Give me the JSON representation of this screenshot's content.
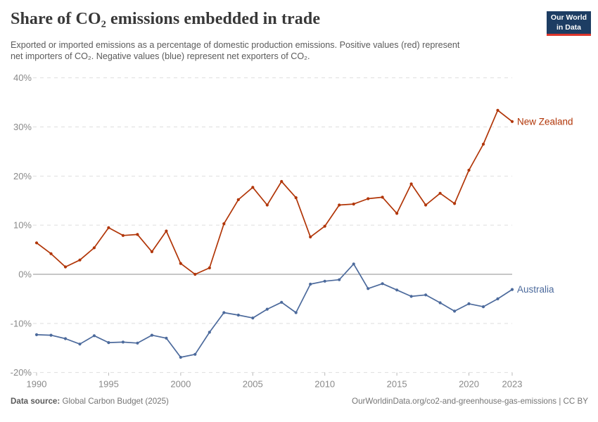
{
  "header": {
    "title": "Share of CO₂ emissions embedded in trade",
    "subtitle": "Exported or imported emissions as a percentage of domestic production emissions. Positive values (red) represent net importers of CO₂. Negative values (blue) represent net exporters of CO₂.",
    "logo": {
      "line1": "Our World",
      "line2": "in Data",
      "bg_color": "#1d3d63",
      "accent_color": "#dc352b"
    }
  },
  "chart_data": {
    "type": "line",
    "x": [
      1990,
      1991,
      1992,
      1993,
      1994,
      1995,
      1996,
      1997,
      1998,
      1999,
      2000,
      2001,
      2002,
      2003,
      2004,
      2005,
      2006,
      2007,
      2008,
      2009,
      2010,
      2011,
      2012,
      2013,
      2014,
      2015,
      2016,
      2017,
      2018,
      2019,
      2020,
      2021,
      2022,
      2023
    ],
    "series": [
      {
        "name": "New Zealand",
        "color": "#b13507",
        "values": [
          6.4,
          4.2,
          1.5,
          2.9,
          5.4,
          9.5,
          7.9,
          8.1,
          4.6,
          8.8,
          2.2,
          0.0,
          1.3,
          10.3,
          15.2,
          17.7,
          14.1,
          18.9,
          15.6,
          7.6,
          9.8,
          14.1,
          14.3,
          15.4,
          15.7,
          12.4,
          18.4,
          14.1,
          16.5,
          14.4,
          21.2,
          26.5,
          33.4,
          31.1
        ]
      },
      {
        "name": "Australia",
        "color": "#4c6a9c",
        "values": [
          -12.3,
          -12.4,
          -13.1,
          -14.2,
          -12.5,
          -13.9,
          -13.8,
          -14.0,
          -12.4,
          -13.0,
          -16.9,
          -16.3,
          -11.8,
          -7.8,
          -8.3,
          -8.9,
          -7.1,
          -5.7,
          -7.8,
          -2.0,
          -1.4,
          -1.1,
          2.1,
          -2.9,
          -1.9,
          -3.2,
          -4.5,
          -4.2,
          -5.8,
          -7.5,
          -6.0,
          -6.6,
          -5.0,
          -3.1
        ]
      }
    ],
    "title": "Share of CO₂ emissions embedded in trade",
    "xlabel": "",
    "ylabel": "",
    "xlim": [
      1990,
      2023
    ],
    "ylim": [
      -20,
      40
    ],
    "xticks": [
      1990,
      1995,
      2000,
      2005,
      2010,
      2015,
      2020,
      2023
    ],
    "yticks": [
      40,
      30,
      20,
      10,
      0,
      -10,
      -20
    ],
    "ytick_suffix": "%",
    "grid": "horizontal-dashed",
    "zero_line": true,
    "legend_position": "end-of-line-labels",
    "grid_color": "#dedede",
    "zero_line_color": "#8f8f8f",
    "axis_text_color": "#8a8a8a"
  },
  "footer": {
    "source_label": "Data source:",
    "source_value": " Global Carbon Budget (2025)",
    "attribution": "OurWorldinData.org/co2-and-greenhouse-gas-emissions | CC BY"
  }
}
